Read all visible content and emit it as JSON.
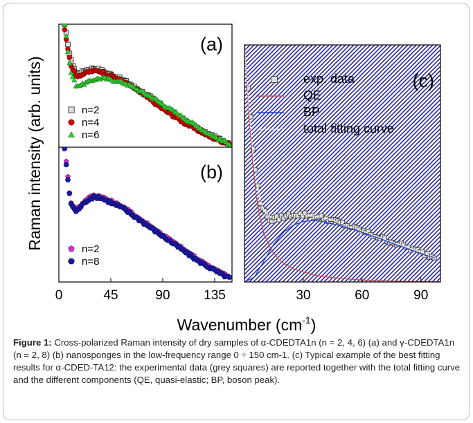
{
  "figure": {
    "shared_ylabel": "Raman intensity (arb. units)",
    "shared_xlabel": "Wavenumber (cm",
    "shared_xlabel_sup": "-1",
    "shared_xlabel_end": ")"
  },
  "caption": {
    "label": "Figure 1:",
    "text": "Cross-polarized Raman intensity of dry samples of α-CDEDTA1n (n = 2, 4, 6) (a) and γ-CDEDTA1n (n = 2, 8) (b) nanosponges in the low-frequency range 0 ÷ 150 cm-1. (c) Typical example of the best fitting results for α-CDED-TA12: the experimental data (grey squares) are reported together with the total fitting curve and the different components (QE, quasi-elastic; BP, boson peak)."
  },
  "chart_data": [
    {
      "panel": "(a)",
      "type": "scatter",
      "xlim": [
        0,
        150
      ],
      "x_ticks": [],
      "y_ticks_shown": false,
      "legend_position": "middle-left",
      "series": [
        {
          "name": "n=2",
          "marker": "square",
          "color": "#9e9e9e",
          "x": [
            5,
            10,
            15,
            20,
            25,
            30,
            35,
            40,
            45,
            50,
            55,
            60,
            70,
            80,
            90,
            100,
            110,
            120,
            130,
            140,
            148
          ],
          "y": [
            1.0,
            0.72,
            0.6,
            0.61,
            0.63,
            0.64,
            0.63,
            0.61,
            0.59,
            0.57,
            0.55,
            0.52,
            0.46,
            0.4,
            0.33,
            0.27,
            0.21,
            0.15,
            0.1,
            0.06,
            0.03
          ]
        },
        {
          "name": "n=4",
          "marker": "circle",
          "color": "#cc0000",
          "x": [
            5,
            10,
            15,
            20,
            25,
            30,
            35,
            40,
            45,
            50,
            55,
            60,
            70,
            80,
            90,
            100,
            110,
            120,
            130,
            140,
            148
          ],
          "y": [
            0.96,
            0.68,
            0.58,
            0.59,
            0.61,
            0.62,
            0.62,
            0.6,
            0.58,
            0.56,
            0.54,
            0.51,
            0.45,
            0.38,
            0.31,
            0.25,
            0.19,
            0.14,
            0.09,
            0.05,
            0.03
          ]
        },
        {
          "name": "n=6",
          "marker": "triangle",
          "color": "#33cc33",
          "x": [
            5,
            10,
            15,
            20,
            25,
            30,
            35,
            40,
            45,
            50,
            55,
            60,
            70,
            80,
            90,
            100,
            110,
            120,
            130,
            140,
            148
          ],
          "y": [
            1.0,
            0.62,
            0.5,
            0.51,
            0.53,
            0.55,
            0.56,
            0.56,
            0.55,
            0.54,
            0.53,
            0.51,
            0.46,
            0.41,
            0.35,
            0.29,
            0.23,
            0.17,
            0.11,
            0.06,
            0.03
          ]
        }
      ]
    },
    {
      "panel": "(b)",
      "type": "scatter",
      "xlim": [
        0,
        150
      ],
      "x_ticks": [
        0,
        45,
        90,
        135
      ],
      "y_ticks_shown": false,
      "legend_position": "bottom-left",
      "series": [
        {
          "name": "n=2",
          "marker": "pentagon",
          "color": "#cc33cc",
          "x": [
            5,
            10,
            15,
            20,
            25,
            30,
            35,
            40,
            45,
            50,
            55,
            60,
            70,
            80,
            90,
            100,
            110,
            120,
            130,
            140,
            148
          ],
          "y": [
            1.0,
            0.6,
            0.53,
            0.58,
            0.62,
            0.64,
            0.64,
            0.62,
            0.6,
            0.58,
            0.56,
            0.53,
            0.47,
            0.41,
            0.35,
            0.29,
            0.23,
            0.17,
            0.12,
            0.07,
            0.04
          ]
        },
        {
          "name": "n=8",
          "marker": "hexagon",
          "color": "#1a1aa6",
          "x": [
            5,
            10,
            15,
            20,
            25,
            30,
            35,
            40,
            45,
            50,
            55,
            60,
            70,
            80,
            90,
            100,
            110,
            120,
            130,
            140,
            148
          ],
          "y": [
            0.98,
            0.59,
            0.52,
            0.57,
            0.61,
            0.63,
            0.63,
            0.61,
            0.59,
            0.57,
            0.55,
            0.52,
            0.46,
            0.4,
            0.34,
            0.28,
            0.22,
            0.16,
            0.11,
            0.06,
            0.03
          ]
        }
      ]
    },
    {
      "panel": "(c)",
      "type": "line",
      "xlim": [
        0,
        100
      ],
      "x_ticks": [
        30,
        60,
        90
      ],
      "y_ticks_shown": false,
      "background": "hatched",
      "legend_position": "top-left",
      "series": [
        {
          "name": "exp. data",
          "marker": "square",
          "color": "#444444",
          "x": [
            2,
            5,
            8,
            11,
            14,
            17,
            20,
            25,
            30,
            35,
            40,
            45,
            50,
            55,
            60,
            70,
            80,
            90,
            95,
            98
          ],
          "y": [
            0.82,
            0.5,
            0.34,
            0.28,
            0.26,
            0.27,
            0.275,
            0.285,
            0.285,
            0.28,
            0.27,
            0.26,
            0.245,
            0.23,
            0.215,
            0.185,
            0.155,
            0.125,
            0.11,
            0.1
          ]
        },
        {
          "name": "QE",
          "marker": "",
          "color": "#c0504d",
          "x": [
            0,
            2,
            4,
            6,
            8,
            10,
            14,
            18,
            25,
            35,
            45,
            60,
            80,
            100
          ],
          "y": [
            1.0,
            0.74,
            0.52,
            0.36,
            0.27,
            0.2,
            0.13,
            0.09,
            0.055,
            0.03,
            0.018,
            0.008,
            0.003,
            0.001
          ]
        },
        {
          "name": "BP",
          "marker": "",
          "color": "#1f3fd6",
          "x": [
            0,
            5,
            10,
            15,
            20,
            25,
            30,
            35,
            40,
            45,
            50,
            60,
            70,
            80,
            90,
            100
          ],
          "y": [
            0.0,
            0.02,
            0.09,
            0.16,
            0.21,
            0.24,
            0.255,
            0.26,
            0.255,
            0.245,
            0.235,
            0.21,
            0.18,
            0.15,
            0.12,
            0.095
          ]
        },
        {
          "name": "total fitting curve",
          "marker": "",
          "color": "#ffffff",
          "x": [
            0,
            2,
            4,
            6,
            8,
            10,
            14,
            18,
            25,
            30,
            35,
            40,
            45,
            50,
            60,
            70,
            80,
            90,
            100
          ],
          "y": [
            1.0,
            0.76,
            0.57,
            0.43,
            0.35,
            0.3,
            0.27,
            0.27,
            0.285,
            0.285,
            0.28,
            0.27,
            0.26,
            0.245,
            0.215,
            0.185,
            0.155,
            0.125,
            0.095
          ]
        }
      ]
    }
  ]
}
